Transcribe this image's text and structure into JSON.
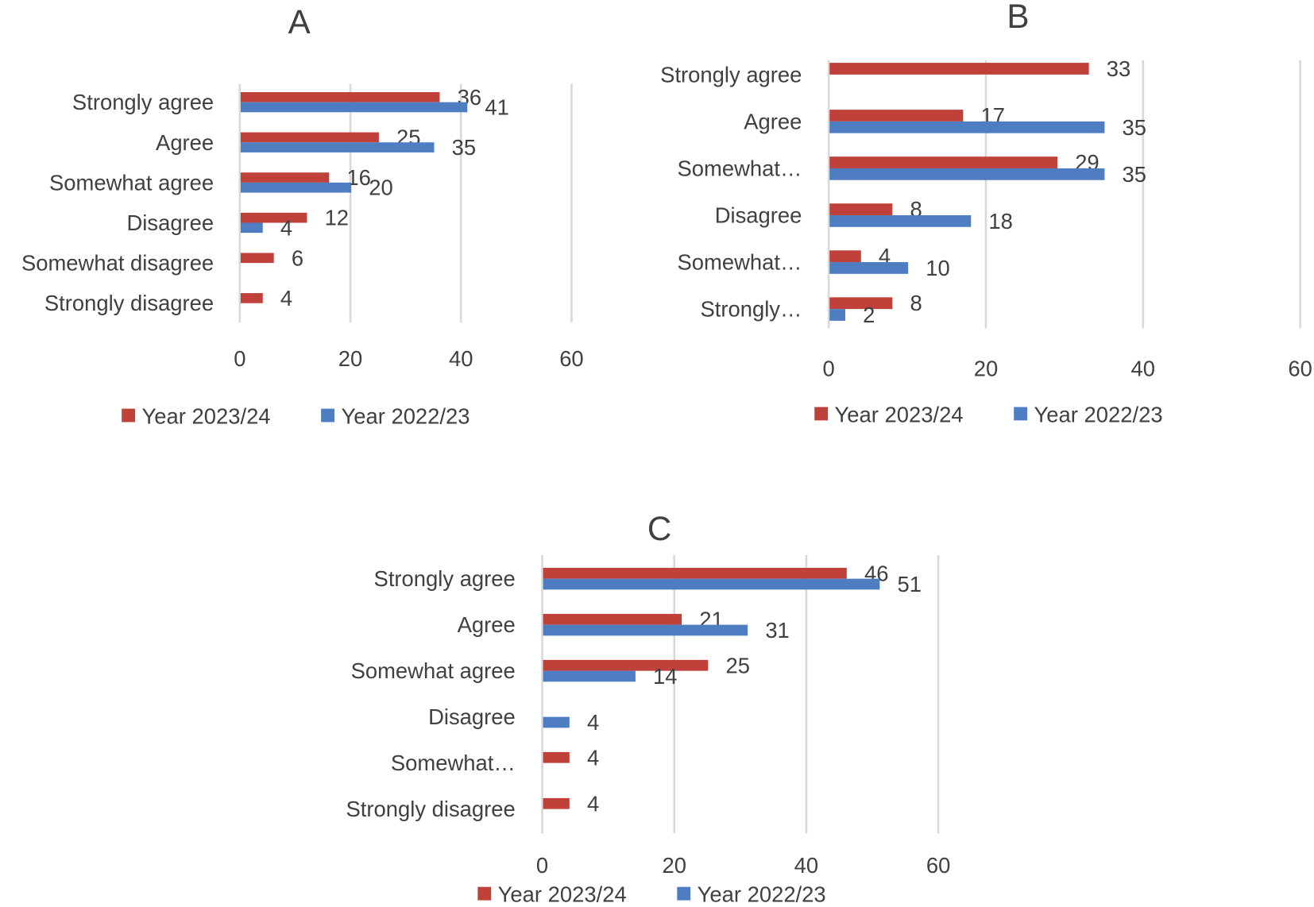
{
  "chart_data": [
    {
      "type": "bar",
      "orientation": "horizontal",
      "title": "A",
      "categories": [
        "Strongly agree",
        "Agree",
        "Somewhat agree",
        "Disagree",
        "Somewhat disagree",
        "Strongly disagree"
      ],
      "series": [
        {
          "name": "Year 2023/24",
          "color": "#C0403A",
          "values": [
            36,
            25,
            16,
            12,
            6,
            4
          ]
        },
        {
          "name": "Year 2022/23",
          "color": "#4E7EC1",
          "values": [
            41,
            35,
            20,
            4,
            null,
            null
          ]
        }
      ],
      "xlim": [
        0,
        60
      ],
      "xticks": [
        "0",
        "20",
        "40",
        "60"
      ],
      "grid": true,
      "legend": "bottom"
    },
    {
      "type": "bar",
      "orientation": "horizontal",
      "title": "B",
      "categories": [
        "Strongly agree",
        "Agree",
        "Somewhat…",
        "Disagree",
        "Somewhat…",
        "Strongly…"
      ],
      "series": [
        {
          "name": "Year 2023/24",
          "color": "#C0403A",
          "values": [
            33,
            17,
            29,
            8,
            4,
            8
          ]
        },
        {
          "name": "Year 2022/23",
          "color": "#4E7EC1",
          "values": [
            null,
            35,
            35,
            18,
            10,
            2
          ]
        }
      ],
      "xlim": [
        0,
        60
      ],
      "xticks": [
        "0",
        "20",
        "40",
        "60"
      ],
      "grid": true,
      "legend": "bottom"
    },
    {
      "type": "bar",
      "orientation": "horizontal",
      "title": "C",
      "categories": [
        "Strongly agree",
        "Agree",
        "Somewhat agree",
        "Disagree",
        "Somewhat…",
        "Strongly disagree"
      ],
      "series": [
        {
          "name": "Year 2023/24",
          "color": "#C0403A",
          "values": [
            46,
            21,
            25,
            null,
            4,
            4
          ]
        },
        {
          "name": "Year 2022/23",
          "color": "#4E7EC1",
          "values": [
            51,
            31,
            14,
            4,
            null,
            null
          ]
        }
      ],
      "xlim": [
        0,
        60
      ],
      "xticks": [
        "0",
        "20",
        "40",
        "60"
      ],
      "grid": true,
      "legend": "bottom"
    }
  ]
}
